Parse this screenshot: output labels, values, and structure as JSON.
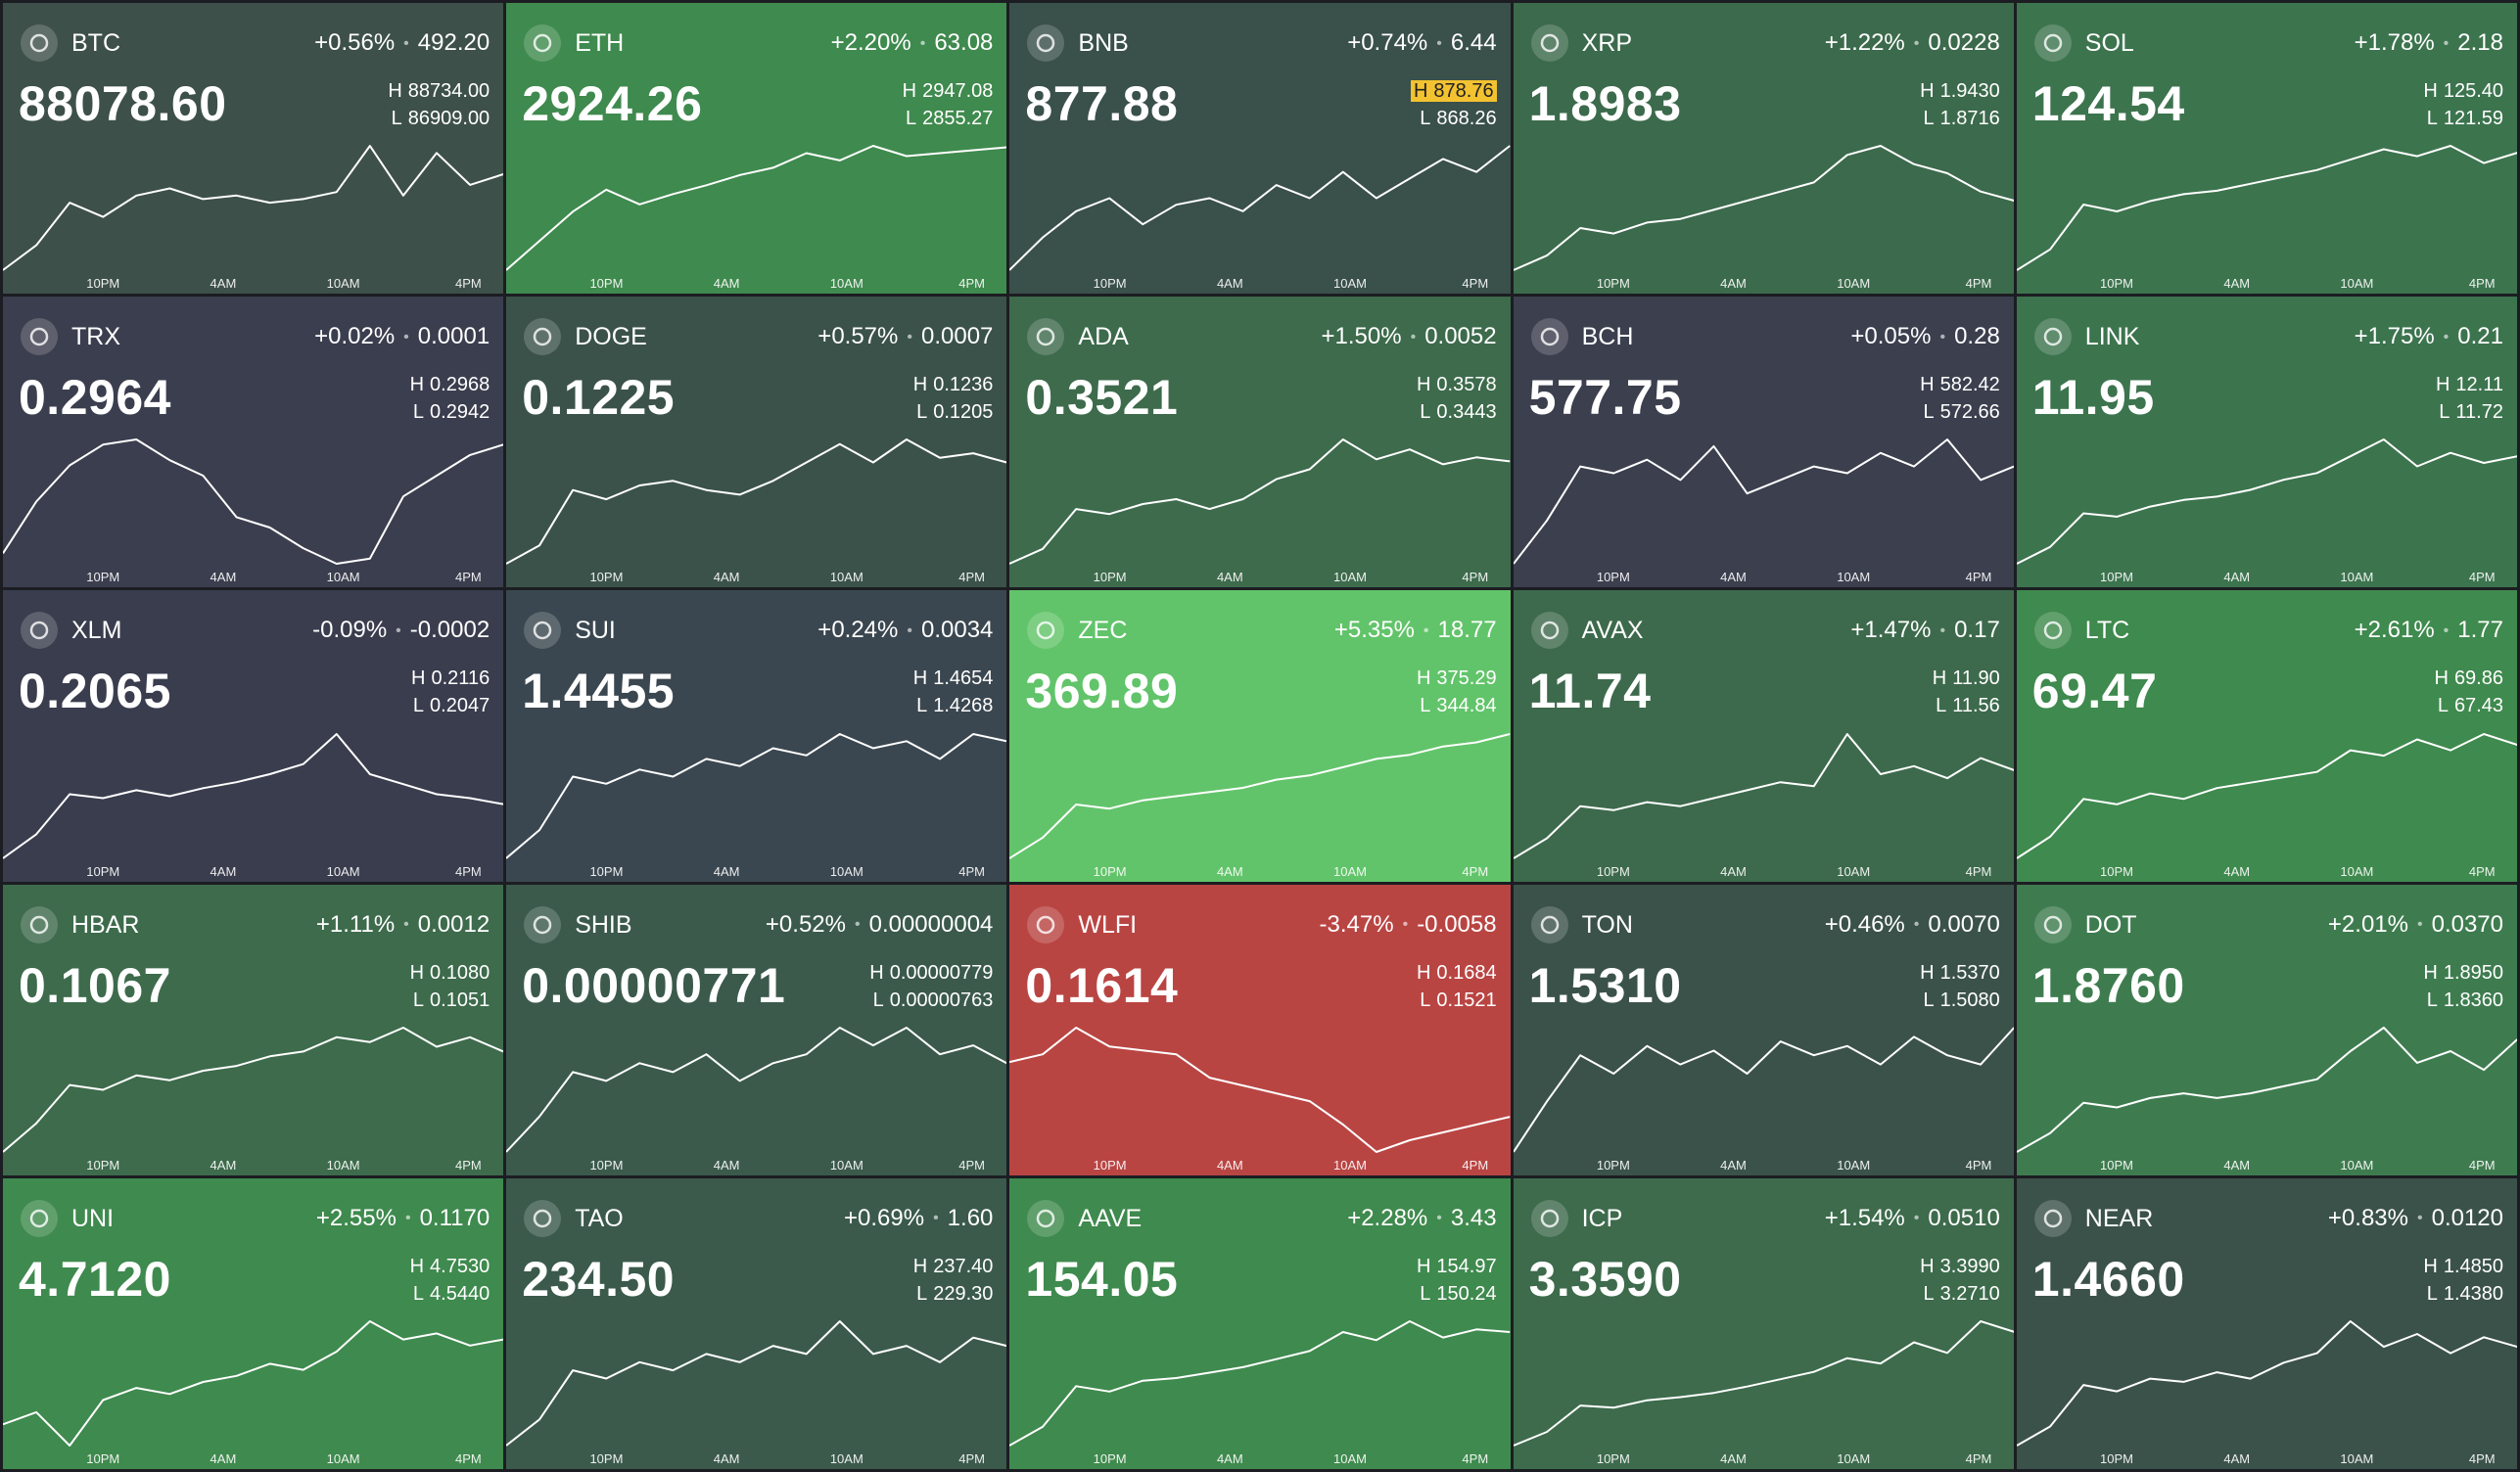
{
  "labels": {
    "high": "H",
    "low": "L",
    "separator": "•"
  },
  "time_labels": [
    "10PM",
    "4AM",
    "10AM",
    "4PM"
  ],
  "tiles": [
    {
      "symbol": "BTC",
      "change_pct": "+0.56%",
      "change": "492.20",
      "price": "88078.60",
      "high": "88734.00",
      "low": "86909.00",
      "bg": "#3d5049",
      "spark": [
        86950,
        87300,
        87900,
        87700,
        88000,
        88100,
        87950,
        88000,
        87900,
        87950,
        88050,
        88700,
        88000,
        88600,
        88150,
        88300
      ]
    },
    {
      "symbol": "ETH",
      "change_pct": "+2.20%",
      "change": "63.08",
      "price": "2924.26",
      "high": "2947.08",
      "low": "2855.27",
      "bg": "#3f8a4e",
      "spark": [
        2860,
        2880,
        2900,
        2915,
        2905,
        2912,
        2918,
        2925,
        2930,
        2940,
        2935,
        2945,
        2938,
        2940,
        2942,
        2944
      ]
    },
    {
      "symbol": "BNB",
      "change_pct": "+0.74%",
      "change": "6.44",
      "price": "877.88",
      "high": "878.76",
      "low": "868.26",
      "bg": "#3a504a",
      "highlight": "high",
      "spark": [
        868.5,
        871,
        873,
        874,
        872,
        873.5,
        874,
        873,
        875,
        874,
        876,
        874,
        875.5,
        877,
        876,
        878
      ]
    },
    {
      "symbol": "XRP",
      "change_pct": "+1.22%",
      "change": "0.0228",
      "price": "1.8983",
      "high": "1.9430",
      "low": "1.8716",
      "bg": "#3c6a4c",
      "spark": [
        1.872,
        1.88,
        1.895,
        1.892,
        1.898,
        1.9,
        1.905,
        1.91,
        1.915,
        1.92,
        1.935,
        1.94,
        1.93,
        1.925,
        1.915,
        1.91
      ]
    },
    {
      "symbol": "SOL",
      "change_pct": "+1.78%",
      "change": "2.18",
      "price": "124.54",
      "high": "125.40",
      "low": "121.59",
      "bg": "#3c744e",
      "spark": [
        121.7,
        122.3,
        123.6,
        123.4,
        123.7,
        123.9,
        124,
        124.2,
        124.4,
        124.6,
        124.9,
        125.2,
        125,
        125.3,
        124.8,
        125.1
      ]
    },
    {
      "symbol": "TRX",
      "change_pct": "+0.02%",
      "change": "0.0001",
      "price": "0.2964",
      "high": "0.2968",
      "low": "0.2942",
      "bg": "#3b3e4e",
      "spark": [
        0.2945,
        0.2955,
        0.2962,
        0.2966,
        0.2967,
        0.2963,
        0.296,
        0.2952,
        0.295,
        0.2946,
        0.2943,
        0.2944,
        0.2956,
        0.296,
        0.2964,
        0.2966
      ]
    },
    {
      "symbol": "DOGE",
      "change_pct": "+0.57%",
      "change": "0.0007",
      "price": "0.1225",
      "high": "0.1236",
      "low": "0.1205",
      "bg": "#3b524a",
      "spark": [
        0.1206,
        0.121,
        0.1222,
        0.122,
        0.1223,
        0.1224,
        0.1222,
        0.1221,
        0.1224,
        0.1228,
        0.1232,
        0.1228,
        0.1233,
        0.1229,
        0.123,
        0.1228
      ]
    },
    {
      "symbol": "ADA",
      "change_pct": "+1.50%",
      "change": "0.0052",
      "price": "0.3521",
      "high": "0.3578",
      "low": "0.3443",
      "bg": "#3d6b4c",
      "spark": [
        0.3445,
        0.346,
        0.35,
        0.3495,
        0.3505,
        0.351,
        0.35,
        0.351,
        0.353,
        0.354,
        0.357,
        0.355,
        0.356,
        0.3545,
        0.3552,
        0.3548
      ]
    },
    {
      "symbol": "BCH",
      "change_pct": "+0.05%",
      "change": "0.28",
      "price": "577.75",
      "high": "582.42",
      "low": "572.66",
      "bg": "#3b3f4e",
      "spark": [
        572.8,
        576,
        580,
        579.5,
        580.5,
        579,
        581.5,
        578,
        579,
        580,
        579.5,
        581,
        580,
        582,
        579,
        580
      ]
    },
    {
      "symbol": "LINK",
      "change_pct": "+1.75%",
      "change": "0.21",
      "price": "11.95",
      "high": "12.11",
      "low": "11.72",
      "bg": "#3c744e",
      "spark": [
        11.73,
        11.78,
        11.88,
        11.87,
        11.9,
        11.92,
        11.93,
        11.95,
        11.98,
        12,
        12.05,
        12.1,
        12.02,
        12.06,
        12.03,
        12.05
      ]
    },
    {
      "symbol": "XLM",
      "change_pct": "-0.09%",
      "change": "-0.0002",
      "price": "0.2065",
      "high": "0.2116",
      "low": "0.2047",
      "bg": "#3a3d4e",
      "spark": [
        0.2048,
        0.206,
        0.208,
        0.2078,
        0.2082,
        0.2079,
        0.2083,
        0.2086,
        0.209,
        0.2095,
        0.211,
        0.209,
        0.2085,
        0.208,
        0.2078,
        0.2075
      ]
    },
    {
      "symbol": "SUI",
      "change_pct": "+0.24%",
      "change": "0.0034",
      "price": "1.4455",
      "high": "1.4654",
      "low": "1.4268",
      "bg": "#3b4750",
      "spark": [
        1.427,
        1.435,
        1.45,
        1.448,
        1.452,
        1.45,
        1.455,
        1.453,
        1.458,
        1.456,
        1.462,
        1.458,
        1.46,
        1.455,
        1.462,
        1.46
      ]
    },
    {
      "symbol": "ZEC",
      "change_pct": "+5.35%",
      "change": "18.77",
      "price": "369.89",
      "high": "375.29",
      "low": "344.84",
      "bg": "#62c46a",
      "spark": [
        345,
        350,
        358,
        357,
        359,
        360,
        361,
        362,
        364,
        365,
        367,
        369,
        370,
        372,
        373,
        375
      ]
    },
    {
      "symbol": "AVAX",
      "change_pct": "+1.47%",
      "change": "0.17",
      "price": "11.74",
      "high": "11.90",
      "low": "11.56",
      "bg": "#3d6a4c",
      "spark": [
        11.57,
        11.62,
        11.7,
        11.69,
        11.71,
        11.7,
        11.72,
        11.74,
        11.76,
        11.75,
        11.88,
        11.78,
        11.8,
        11.77,
        11.82,
        11.79
      ]
    },
    {
      "symbol": "LTC",
      "change_pct": "+2.61%",
      "change": "1.77",
      "price": "69.47",
      "high": "69.86",
      "low": "67.43",
      "bg": "#3f8a4e",
      "spark": [
        67.5,
        67.9,
        68.6,
        68.5,
        68.7,
        68.6,
        68.8,
        68.9,
        69,
        69.1,
        69.5,
        69.4,
        69.7,
        69.5,
        69.8,
        69.6
      ]
    },
    {
      "symbol": "HBAR",
      "change_pct": "+1.11%",
      "change": "0.0012",
      "price": "0.1067",
      "high": "0.1080",
      "low": "0.1051",
      "bg": "#3d6b4c",
      "spark": [
        0.1052,
        0.1058,
        0.1066,
        0.1065,
        0.1068,
        0.1067,
        0.1069,
        0.107,
        0.1072,
        0.1073,
        0.1076,
        0.1075,
        0.1078,
        0.1074,
        0.1076,
        0.1073
      ]
    },
    {
      "symbol": "SHIB",
      "change_pct": "+0.52%",
      "change": "0.00000004",
      "price": "0.00000771",
      "high": "0.00000779",
      "low": "0.00000763",
      "bg": "#3b5a4c",
      "spark": [
        7.64e-06,
        7.68e-06,
        7.73e-06,
        7.72e-06,
        7.74e-06,
        7.73e-06,
        7.75e-06,
        7.72e-06,
        7.74e-06,
        7.75e-06,
        7.78e-06,
        7.76e-06,
        7.78e-06,
        7.75e-06,
        7.76e-06,
        7.74e-06
      ]
    },
    {
      "symbol": "WLFI",
      "change_pct": "-3.47%",
      "change": "-0.0058",
      "price": "0.1614",
      "high": "0.1684",
      "low": "0.1521",
      "bg": "#b94543",
      "spark": [
        0.164,
        0.165,
        0.1684,
        0.166,
        0.1655,
        0.165,
        0.162,
        0.161,
        0.16,
        0.159,
        0.156,
        0.1525,
        0.154,
        0.155,
        0.156,
        0.157
      ]
    },
    {
      "symbol": "TON",
      "change_pct": "+0.46%",
      "change": "0.0070",
      "price": "1.5310",
      "high": "1.5370",
      "low": "1.5080",
      "bg": "#3b524a",
      "spark": [
        1.509,
        1.52,
        1.53,
        1.526,
        1.532,
        1.528,
        1.531,
        1.526,
        1.533,
        1.53,
        1.532,
        1.528,
        1.534,
        1.53,
        1.528,
        1.536
      ]
    },
    {
      "symbol": "DOT",
      "change_pct": "+2.01%",
      "change": "0.0370",
      "price": "1.8760",
      "high": "1.8950",
      "low": "1.8360",
      "bg": "#3e7c4f",
      "spark": [
        1.837,
        1.845,
        1.858,
        1.856,
        1.86,
        1.862,
        1.86,
        1.862,
        1.865,
        1.868,
        1.88,
        1.89,
        1.875,
        1.88,
        1.872,
        1.885
      ]
    },
    {
      "symbol": "UNI",
      "change_pct": "+2.55%",
      "change": "0.1170",
      "price": "4.7120",
      "high": "4.7530",
      "low": "4.5440",
      "bg": "#3f8a4e",
      "spark": [
        4.58,
        4.6,
        4.545,
        4.62,
        4.64,
        4.63,
        4.65,
        4.66,
        4.68,
        4.67,
        4.7,
        4.75,
        4.72,
        4.73,
        4.71,
        4.72
      ]
    },
    {
      "symbol": "TAO",
      "change_pct": "+0.69%",
      "change": "1.60",
      "price": "234.50",
      "high": "237.40",
      "low": "229.30",
      "bg": "#3b5a4c",
      "spark": [
        229.4,
        231,
        234,
        233.5,
        234.5,
        234,
        235,
        234.5,
        235.5,
        235,
        237,
        235,
        235.5,
        234.5,
        236,
        235.5
      ]
    },
    {
      "symbol": "AAVE",
      "change_pct": "+2.28%",
      "change": "3.43",
      "price": "154.05",
      "high": "154.97",
      "low": "150.24",
      "bg": "#3f8a4e",
      "spark": [
        150.3,
        151,
        152.5,
        152.3,
        152.7,
        152.8,
        153,
        153.2,
        153.5,
        153.8,
        154.5,
        154.2,
        154.9,
        154.3,
        154.6,
        154.5
      ]
    },
    {
      "symbol": "ICP",
      "change_pct": "+1.54%",
      "change": "0.0510",
      "price": "3.3590",
      "high": "3.3990",
      "low": "3.2710",
      "bg": "#3d6b4c",
      "spark": [
        3.272,
        3.285,
        3.31,
        3.308,
        3.315,
        3.318,
        3.322,
        3.328,
        3.335,
        3.342,
        3.355,
        3.35,
        3.37,
        3.36,
        3.39,
        3.38
      ]
    },
    {
      "symbol": "NEAR",
      "change_pct": "+0.83%",
      "change": "0.0120",
      "price": "1.4660",
      "high": "1.4850",
      "low": "1.4380",
      "bg": "#3b524a",
      "spark": [
        1.439,
        1.445,
        1.458,
        1.456,
        1.46,
        1.459,
        1.462,
        1.46,
        1.465,
        1.468,
        1.478,
        1.47,
        1.474,
        1.468,
        1.473,
        1.47
      ]
    }
  ]
}
